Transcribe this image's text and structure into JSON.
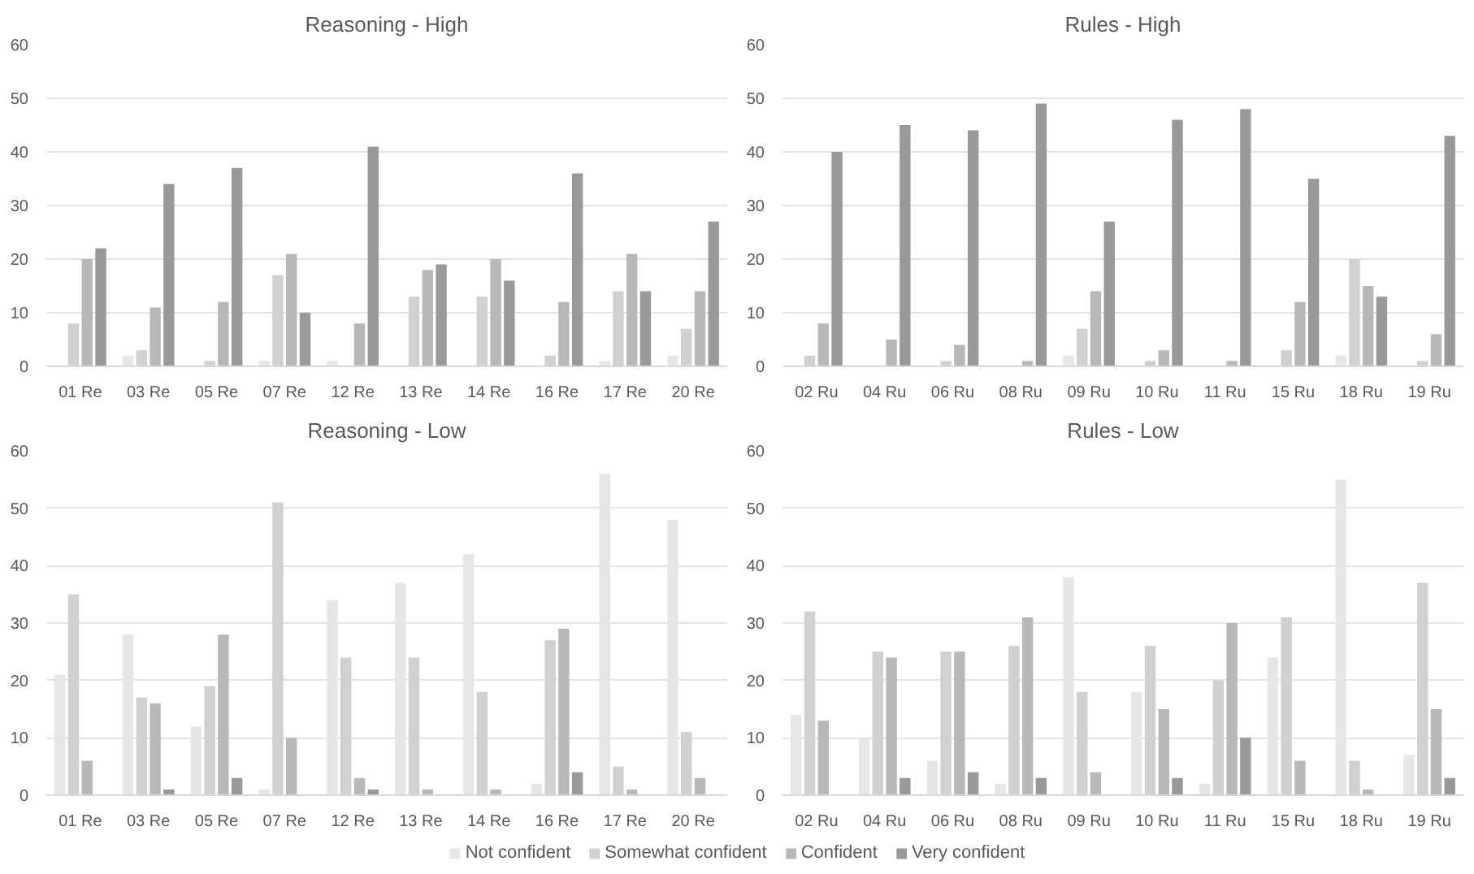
{
  "chart_data": [
    {
      "type": "bar",
      "title": "Reasoning - High",
      "categories": [
        "01 Re",
        "03 Re",
        "05 Re",
        "07 Re",
        "12 Re",
        "13 Re",
        "14 Re",
        "16 Re",
        "17 Re",
        "20 Re"
      ],
      "ylim": [
        0,
        60
      ],
      "yticks": [
        0,
        10,
        20,
        30,
        40,
        50,
        60
      ],
      "grid": "y",
      "legend": false,
      "series": [
        {
          "color": "#e6e6e6",
          "values": [
            0,
            2,
            0,
            1,
            1,
            0,
            0,
            0,
            1,
            2
          ]
        },
        {
          "color": "#d0d0d0",
          "values": [
            8,
            3,
            1,
            17,
            0,
            13,
            13,
            2,
            14,
            7
          ]
        },
        {
          "color": "#b8b8b8",
          "values": [
            20,
            11,
            12,
            21,
            8,
            18,
            20,
            12,
            21,
            14
          ]
        },
        {
          "color": "#999999",
          "values": [
            22,
            34,
            37,
            10,
            41,
            19,
            16,
            36,
            14,
            27
          ]
        }
      ]
    },
    {
      "type": "bar",
      "title": "Rules - High",
      "categories": [
        "02 Ru",
        "04 Ru",
        "06 Ru",
        "08 Ru",
        "09 Ru",
        "10 Ru",
        "11 Ru",
        "15 Ru",
        "18 Ru",
        "19 Ru"
      ],
      "ylim": [
        0,
        60
      ],
      "yticks": [
        0,
        10,
        20,
        30,
        40,
        50,
        60
      ],
      "grid": "y",
      "legend": false,
      "series": [
        {
          "color": "#e6e6e6",
          "values": [
            0,
            0,
            0,
            0,
            2,
            0,
            0,
            0,
            2,
            0
          ]
        },
        {
          "color": "#d0d0d0",
          "values": [
            2,
            0,
            1,
            0,
            7,
            1,
            0,
            3,
            20,
            1
          ]
        },
        {
          "color": "#b8b8b8",
          "values": [
            8,
            5,
            4,
            1,
            14,
            3,
            1,
            12,
            15,
            6
          ]
        },
        {
          "color": "#999999",
          "values": [
            40,
            45,
            44,
            49,
            27,
            46,
            48,
            35,
            13,
            43
          ]
        }
      ]
    },
    {
      "type": "bar",
      "title": "Reasoning - Low",
      "categories": [
        "01 Re",
        "03 Re",
        "05 Re",
        "07 Re",
        "12 Re",
        "13 Re",
        "14 Re",
        "16 Re",
        "17 Re",
        "20 Re"
      ],
      "ylim": [
        0,
        60
      ],
      "yticks": [
        0,
        10,
        20,
        30,
        40,
        50,
        60
      ],
      "grid": "y",
      "legend": "bottom",
      "series": [
        {
          "name": "Not confident",
          "color": "#e6e6e6",
          "values": [
            21,
            28,
            12,
            1,
            34,
            37,
            42,
            2,
            56,
            48
          ]
        },
        {
          "name": "Somewhat confident",
          "color": "#d0d0d0",
          "values": [
            35,
            17,
            19,
            51,
            24,
            24,
            18,
            27,
            5,
            11
          ]
        },
        {
          "name": "Confident",
          "color": "#b8b8b8",
          "values": [
            6,
            16,
            28,
            10,
            3,
            1,
            1,
            29,
            1,
            3
          ]
        },
        {
          "name": "Very confident",
          "color": "#999999",
          "values": [
            0,
            1,
            3,
            0,
            1,
            0,
            0,
            4,
            0,
            0
          ]
        }
      ]
    },
    {
      "type": "bar",
      "title": "Rules - Low",
      "categories": [
        "02 Ru",
        "04 Ru",
        "06 Ru",
        "08 Ru",
        "09 Ru",
        "10 Ru",
        "11 Ru",
        "15 Ru",
        "18 Ru",
        "19 Ru"
      ],
      "ylim": [
        0,
        60
      ],
      "yticks": [
        0,
        10,
        20,
        30,
        40,
        50,
        60
      ],
      "grid": "y",
      "legend": false,
      "series": [
        {
          "color": "#e6e6e6",
          "values": [
            14,
            10,
            6,
            2,
            38,
            18,
            2,
            24,
            55,
            7
          ]
        },
        {
          "color": "#d0d0d0",
          "values": [
            32,
            25,
            25,
            26,
            18,
            26,
            20,
            31,
            6,
            37
          ]
        },
        {
          "color": "#b8b8b8",
          "values": [
            13,
            24,
            25,
            31,
            4,
            15,
            30,
            6,
            1,
            15
          ]
        },
        {
          "color": "#999999",
          "values": [
            0,
            3,
            4,
            3,
            0,
            3,
            10,
            0,
            0,
            3
          ]
        }
      ]
    }
  ]
}
